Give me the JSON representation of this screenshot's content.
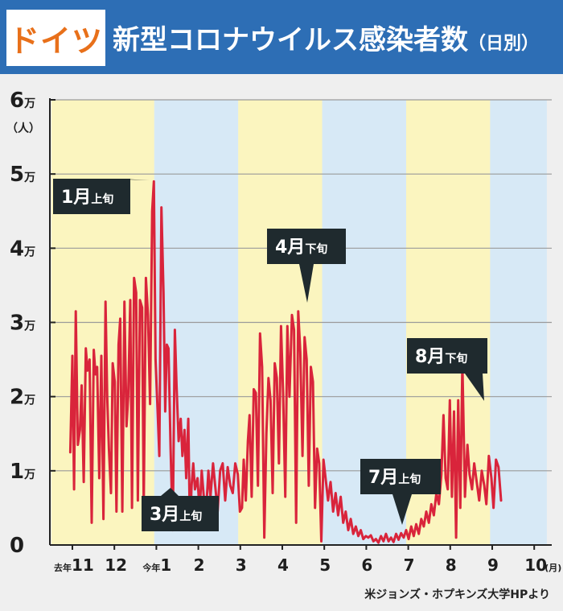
{
  "header": {
    "country": "ドイツ",
    "title": "新型コロナウイルス感染者数",
    "subtitle": "（日別）"
  },
  "source": "米ジョンズ・ホプキンズ大学HPより",
  "colors": {
    "header_bg": "#2d6eb5",
    "country_text": "#e8701a",
    "band_yellow": "#fbf5bf",
    "band_blue": "#d7e9f6",
    "line": "#d9243b",
    "callout_bg": "#1f2a2e"
  },
  "chart_data": {
    "type": "line",
    "title": "新型コロナウイルス感染者数（日別）",
    "ylabel": "（人）",
    "ylim": [
      0,
      60000
    ],
    "y_ticks": [
      {
        "value": 0,
        "label": "0",
        "suffix": ""
      },
      {
        "value": 10000,
        "label": "1",
        "suffix": "万"
      },
      {
        "value": 20000,
        "label": "2",
        "suffix": "万"
      },
      {
        "value": 30000,
        "label": "3",
        "suffix": "万"
      },
      {
        "value": 40000,
        "label": "4",
        "suffix": "万"
      },
      {
        "value": 50000,
        "label": "5",
        "suffix": "万"
      },
      {
        "value": 60000,
        "label": "6",
        "suffix": "万"
      }
    ],
    "x_ticks": [
      {
        "month": 0,
        "prefix": "去年",
        "label": "11"
      },
      {
        "month": 1,
        "prefix": "",
        "label": "12"
      },
      {
        "month": 2,
        "prefix": "今年",
        "label": "1"
      },
      {
        "month": 3,
        "prefix": "",
        "label": "2"
      },
      {
        "month": 4,
        "prefix": "",
        "label": "3"
      },
      {
        "month": 5,
        "prefix": "",
        "label": "4"
      },
      {
        "month": 6,
        "prefix": "",
        "label": "5"
      },
      {
        "month": 7,
        "prefix": "",
        "label": "6"
      },
      {
        "month": 8,
        "prefix": "",
        "label": "7"
      },
      {
        "month": 9,
        "prefix": "",
        "label": "8"
      },
      {
        "month": 10,
        "prefix": "",
        "label": "9"
      },
      {
        "month": 11,
        "prefix": "",
        "label": "10",
        "suffix": "(月)"
      }
    ],
    "xlim": [
      -0.5,
      11.3
    ],
    "bands": [
      {
        "from": -0.5,
        "to": 1.95,
        "color": "yellow"
      },
      {
        "from": 1.95,
        "to": 3.95,
        "color": "blue"
      },
      {
        "from": 3.95,
        "to": 5.95,
        "color": "yellow"
      },
      {
        "from": 5.95,
        "to": 7.95,
        "color": "blue"
      },
      {
        "from": 7.95,
        "to": 9.95,
        "color": "yellow"
      },
      {
        "from": 9.95,
        "to": 11.3,
        "color": "blue"
      }
    ],
    "series": [
      {
        "values": [
          [
            -0.05,
            12500
          ],
          [
            0.0,
            25500
          ],
          [
            0.04,
            7500
          ],
          [
            0.08,
            31500
          ],
          [
            0.13,
            13500
          ],
          [
            0.18,
            15500
          ],
          [
            0.22,
            21500
          ],
          [
            0.27,
            8500
          ],
          [
            0.32,
            26500
          ],
          [
            0.36,
            23500
          ],
          [
            0.41,
            25000
          ],
          [
            0.46,
            3000
          ],
          [
            0.51,
            26300
          ],
          [
            0.55,
            23000
          ],
          [
            0.59,
            24000
          ],
          [
            0.64,
            9000
          ],
          [
            0.69,
            25500
          ],
          [
            0.74,
            3500
          ],
          [
            0.79,
            32800
          ],
          [
            0.83,
            20000
          ],
          [
            0.87,
            13000
          ],
          [
            0.92,
            7000
          ],
          [
            0.96,
            24500
          ],
          [
            1.01,
            22000
          ],
          [
            1.05,
            4500
          ],
          [
            1.1,
            27000
          ],
          [
            1.14,
            30500
          ],
          [
            1.19,
            4500
          ],
          [
            1.24,
            32800
          ],
          [
            1.29,
            16000
          ],
          [
            1.33,
            20000
          ],
          [
            1.38,
            33000
          ],
          [
            1.42,
            5000
          ],
          [
            1.47,
            36000
          ],
          [
            1.52,
            34000
          ],
          [
            1.56,
            6000
          ],
          [
            1.61,
            33000
          ],
          [
            1.66,
            32000
          ],
          [
            1.7,
            5000
          ],
          [
            1.75,
            36000
          ],
          [
            1.8,
            31000
          ],
          [
            1.85,
            19000
          ],
          [
            1.9,
            45000
          ],
          [
            1.94,
            49000
          ],
          [
            1.98,
            25000
          ],
          [
            2.03,
            18000
          ],
          [
            2.07,
            12000
          ],
          [
            2.12,
            45500
          ],
          [
            2.17,
            34000
          ],
          [
            2.21,
            18000
          ],
          [
            2.25,
            27000
          ],
          [
            2.29,
            26500
          ],
          [
            2.34,
            13000
          ],
          [
            2.39,
            2000
          ],
          [
            2.44,
            29000
          ],
          [
            2.48,
            21500
          ],
          [
            2.53,
            14000
          ],
          [
            2.58,
            17000
          ],
          [
            2.62,
            12000
          ],
          [
            2.67,
            15500
          ],
          [
            2.71,
            9000
          ],
          [
            2.76,
            17000
          ],
          [
            2.8,
            2000
          ],
          [
            2.84,
            8000
          ],
          [
            2.88,
            11000
          ],
          [
            2.92,
            7500
          ],
          [
            2.98,
            9000
          ],
          [
            3.03,
            4500
          ],
          [
            3.08,
            10000
          ],
          [
            3.13,
            6500
          ],
          [
            3.18,
            4000
          ],
          [
            3.24,
            10000
          ],
          [
            3.29,
            6500
          ],
          [
            3.35,
            11000
          ],
          [
            3.41,
            7500
          ],
          [
            3.46,
            4500
          ],
          [
            3.52,
            10000
          ],
          [
            3.58,
            11000
          ],
          [
            3.64,
            6000
          ],
          [
            3.7,
            10500
          ],
          [
            3.76,
            8000
          ],
          [
            3.82,
            7000
          ],
          [
            3.88,
            11000
          ],
          [
            3.94,
            9500
          ],
          [
            3.99,
            4500
          ],
          [
            4.04,
            5000
          ],
          [
            4.08,
            11500
          ],
          [
            4.13,
            6000
          ],
          [
            4.18,
            14000
          ],
          [
            4.22,
            17500
          ],
          [
            4.27,
            6500
          ],
          [
            4.32,
            21000
          ],
          [
            4.37,
            20500
          ],
          [
            4.42,
            8000
          ],
          [
            4.47,
            28500
          ],
          [
            4.52,
            24000
          ],
          [
            4.57,
            1000
          ],
          [
            4.62,
            15000
          ],
          [
            4.67,
            22500
          ],
          [
            4.72,
            19500
          ],
          [
            4.77,
            7000
          ],
          [
            4.82,
            24500
          ],
          [
            4.87,
            22500
          ],
          [
            4.92,
            11000
          ],
          [
            4.97,
            29500
          ],
          [
            5.02,
            20500
          ],
          [
            5.07,
            6500
          ],
          [
            5.12,
            29500
          ],
          [
            5.17,
            20000
          ],
          [
            5.23,
            31000
          ],
          [
            5.28,
            29000
          ],
          [
            5.33,
            3000
          ],
          [
            5.38,
            31500
          ],
          [
            5.43,
            26000
          ],
          [
            5.48,
            12000
          ],
          [
            5.53,
            28000
          ],
          [
            5.58,
            25000
          ],
          [
            5.63,
            8000
          ],
          [
            5.68,
            24000
          ],
          [
            5.73,
            22000
          ],
          [
            5.78,
            5000
          ],
          [
            5.83,
            13000
          ],
          [
            5.88,
            11000
          ],
          [
            5.93,
            500
          ],
          [
            5.98,
            11500
          ],
          [
            6.03,
            9000
          ],
          [
            6.09,
            6000
          ],
          [
            6.15,
            8500
          ],
          [
            6.21,
            4500
          ],
          [
            6.27,
            7000
          ],
          [
            6.33,
            4000
          ],
          [
            6.39,
            6500
          ],
          [
            6.45,
            3000
          ],
          [
            6.51,
            4500
          ],
          [
            6.57,
            2000
          ],
          [
            6.63,
            3500
          ],
          [
            6.69,
            1500
          ],
          [
            6.75,
            2500
          ],
          [
            6.81,
            1200
          ],
          [
            6.87,
            2000
          ],
          [
            6.93,
            800
          ],
          [
            6.99,
            1200
          ],
          [
            7.05,
            1000
          ],
          [
            7.11,
            1300
          ],
          [
            7.17,
            500
          ],
          [
            7.23,
            800
          ],
          [
            7.29,
            300
          ],
          [
            7.35,
            1200
          ],
          [
            7.41,
            500
          ],
          [
            7.47,
            1500
          ],
          [
            7.53,
            500
          ],
          [
            7.59,
            1000
          ],
          [
            7.65,
            400
          ],
          [
            7.71,
            1500
          ],
          [
            7.77,
            700
          ],
          [
            7.83,
            1600
          ],
          [
            7.89,
            1000
          ],
          [
            7.95,
            2000
          ],
          [
            8.01,
            800
          ],
          [
            8.07,
            2500
          ],
          [
            8.13,
            1200
          ],
          [
            8.19,
            2800
          ],
          [
            8.25,
            1500
          ],
          [
            8.31,
            3500
          ],
          [
            8.37,
            2500
          ],
          [
            8.43,
            4500
          ],
          [
            8.49,
            3000
          ],
          [
            8.55,
            5500
          ],
          [
            8.61,
            4000
          ],
          [
            8.67,
            7000
          ],
          [
            8.73,
            5500
          ],
          [
            8.79,
            9500
          ],
          [
            8.84,
            17500
          ],
          [
            8.89,
            9000
          ],
          [
            8.94,
            7500
          ],
          [
            8.99,
            19500
          ],
          [
            9.04,
            6500
          ],
          [
            9.09,
            18000
          ],
          [
            9.14,
            1000
          ],
          [
            9.19,
            19500
          ],
          [
            9.24,
            5000
          ],
          [
            9.29,
            24500
          ],
          [
            9.35,
            6500
          ],
          [
            9.41,
            13500
          ],
          [
            9.46,
            9500
          ],
          [
            9.52,
            7500
          ],
          [
            9.57,
            11000
          ],
          [
            9.63,
            8500
          ],
          [
            9.69,
            6000
          ],
          [
            9.75,
            10000
          ],
          [
            9.81,
            8000
          ],
          [
            9.86,
            5500
          ],
          [
            9.92,
            12000
          ],
          [
            9.98,
            9000
          ],
          [
            10.03,
            5000
          ],
          [
            10.09,
            11500
          ],
          [
            10.15,
            10500
          ],
          [
            10.21,
            6000
          ]
        ]
      }
    ],
    "annotations": [
      {
        "month": "1",
        "suffix": "月",
        "period": "上旬"
      },
      {
        "month": "3",
        "suffix": "月",
        "period": "上旬"
      },
      {
        "month": "4",
        "suffix": "月",
        "period": "下旬"
      },
      {
        "month": "7",
        "suffix": "月",
        "period": "上旬"
      },
      {
        "month": "8",
        "suffix": "月",
        "period": "下旬"
      }
    ]
  }
}
